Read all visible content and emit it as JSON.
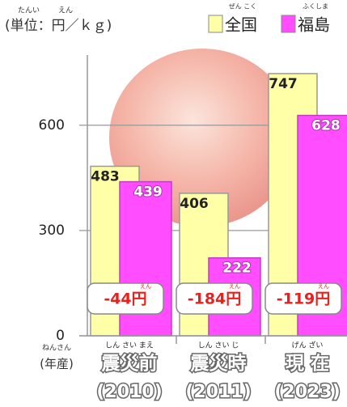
{
  "chart_data": {
    "type": "bar",
    "unit_label": "(単位：円／ｋｇ)",
    "unit_ruby": [
      "たんい",
      "えん"
    ],
    "categories": [
      "震災前",
      "震災時",
      "現 在"
    ],
    "category_years": [
      "(2010)",
      "(2011)",
      "(2023)"
    ],
    "category_ruby": [
      "しん さい まえ",
      "しん さい じ",
      "げん ざい"
    ],
    "axis_note": "(年産)",
    "axis_note_ruby": "ねんさん",
    "series": [
      {
        "name": "全国",
        "ruby": "ぜん こく",
        "color": "#ffffa8",
        "values": [
          483,
          406,
          747
        ]
      },
      {
        "name": "福島",
        "ruby": "ふくしま",
        "color": "#ff4dff",
        "values": [
          439,
          222,
          628
        ]
      }
    ],
    "annotations": [
      {
        "text": "-44円",
        "ruby": "えん"
      },
      {
        "text": "-184円",
        "ruby": "えん"
      },
      {
        "text": "-119円",
        "ruby": "えん"
      }
    ],
    "ylim": [
      0,
      800
    ],
    "yticks": [
      0,
      300,
      600
    ],
    "grid": true
  }
}
